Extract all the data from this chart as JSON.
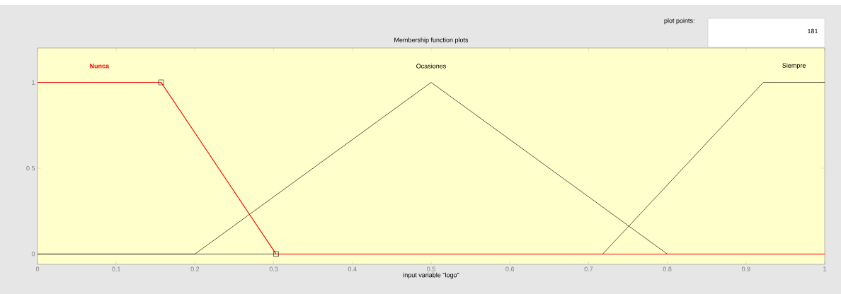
{
  "chart_data": {
    "type": "line",
    "title": "Membership function plots",
    "xlabel": "input variable \"logo\"",
    "series": [
      {
        "name": "Nunca",
        "color": "#ff0000",
        "marker": "square",
        "x": [
          0,
          0.157,
          0.303,
          1
        ],
        "values": [
          1,
          1,
          0,
          0
        ]
      },
      {
        "name": "Ocasiones",
        "color": "#000000",
        "x": [
          0,
          0.2,
          0.5,
          0.8,
          1
        ],
        "values": [
          0,
          0,
          1,
          0,
          0
        ]
      },
      {
        "name": "Siempre",
        "color": "#000000",
        "x": [
          0,
          0.718,
          0.922,
          1
        ],
        "values": [
          0,
          0,
          1,
          1
        ]
      }
    ],
    "xlim": [
      0,
      1
    ],
    "ylim": [
      -0.06,
      1.2
    ],
    "xticks": [
      0,
      0.1,
      0.2,
      0.3,
      0.4,
      0.5,
      0.6,
      0.7,
      0.8,
      0.9,
      1
    ],
    "yticks": [
      0,
      0.5,
      1
    ],
    "grid": false,
    "legend": false,
    "line_style": "solid",
    "annotations": [
      "plot points:",
      "181"
    ]
  }
}
